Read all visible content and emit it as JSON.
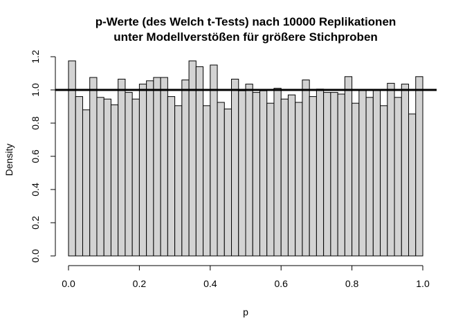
{
  "chart_data": {
    "type": "bar",
    "title_line1": "p-Werte (des Welch t-Tests) nach 10000 Replikationen",
    "title_line2": "unter Modellverstößen für größere Stichproben",
    "xlabel": "p",
    "ylabel": "Density",
    "xlim": [
      0.0,
      1.0
    ],
    "ylim": [
      0.0,
      1.2
    ],
    "x_ticks": [
      0.0,
      0.2,
      0.4,
      0.6,
      0.8,
      1.0
    ],
    "x_tick_labels": [
      "0.0",
      "0.2",
      "0.4",
      "0.6",
      "0.8",
      "1.0"
    ],
    "y_ticks": [
      0.0,
      0.2,
      0.4,
      0.6,
      0.8,
      1.0,
      1.2
    ],
    "y_tick_labels": [
      "0.0",
      "0.2",
      "0.4",
      "0.6",
      "0.8",
      "1.0",
      "1.2"
    ],
    "bin_width": 0.02,
    "bin_starts": [
      0.0,
      0.02,
      0.04,
      0.06,
      0.08,
      0.1,
      0.12,
      0.14,
      0.16,
      0.18,
      0.2,
      0.22,
      0.24,
      0.26,
      0.28,
      0.3,
      0.32,
      0.34,
      0.36,
      0.38,
      0.4,
      0.42,
      0.44,
      0.46,
      0.48,
      0.5,
      0.52,
      0.54,
      0.56,
      0.58,
      0.6,
      0.62,
      0.64,
      0.66,
      0.68,
      0.7,
      0.72,
      0.74,
      0.76,
      0.78,
      0.8,
      0.82,
      0.84,
      0.86,
      0.88,
      0.9,
      0.92,
      0.94,
      0.96,
      0.98
    ],
    "values": [
      1.175,
      0.96,
      0.88,
      1.075,
      0.955,
      0.945,
      0.91,
      1.065,
      0.985,
      0.945,
      1.035,
      1.055,
      1.075,
      1.075,
      0.96,
      0.905,
      1.06,
      1.175,
      1.14,
      0.905,
      1.15,
      0.925,
      0.885,
      1.065,
      0.995,
      1.035,
      0.985,
      0.995,
      0.92,
      1.01,
      0.945,
      0.97,
      0.925,
      1.06,
      0.96,
      1.005,
      0.985,
      0.985,
      0.975,
      1.08,
      0.92,
      1.0,
      0.955,
      1.0,
      0.905,
      1.04,
      0.955,
      1.035,
      0.855,
      1.08
    ],
    "reference_line_y": 1.0,
    "bar_color": "#d3d3d3",
    "grid": false
  }
}
